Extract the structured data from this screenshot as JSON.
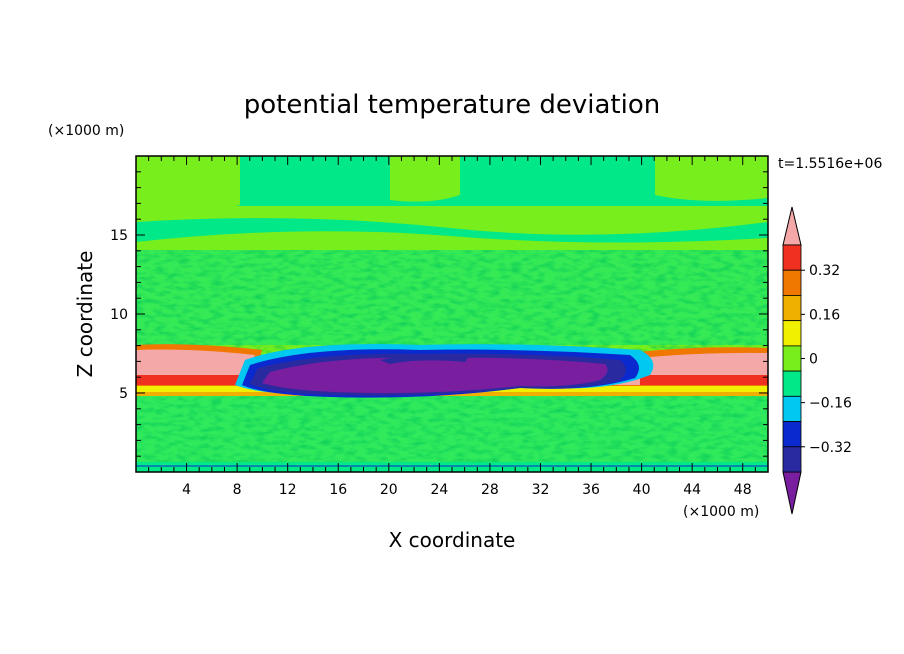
{
  "chart_data": {
    "type": "heatmap",
    "title": "potential temperature deviation",
    "xlabel": "X coordinate",
    "ylabel": "Z coordinate",
    "x_unit": "(×1000 m)",
    "y_unit": "(×1000 m)",
    "time_label": "t=1.5516e+06",
    "xlim": [
      0,
      50
    ],
    "ylim": [
      0,
      20
    ],
    "x_ticks": [
      4,
      8,
      12,
      16,
      20,
      24,
      28,
      32,
      36,
      40,
      44,
      48
    ],
    "y_ticks": [
      5,
      10,
      15
    ],
    "colorbar": {
      "levels": [
        -0.4,
        -0.32,
        -0.24,
        -0.16,
        -0.08,
        0,
        0.08,
        0.16,
        0.24,
        0.32,
        0.4
      ],
      "labels": [
        "0.32",
        "0.16",
        "0",
        "−0.16",
        "−0.32"
      ],
      "label_values": [
        0.32,
        0.16,
        0,
        -0.16,
        -0.32
      ],
      "colors": [
        "#7a1ea0",
        "#2a2aa0",
        "#0a2ad0",
        "#00c8f0",
        "#00e887",
        "#78ee1c",
        "#f0f000",
        "#f0b000",
        "#f07800",
        "#f03020",
        "#f4a8a8"
      ]
    }
  }
}
